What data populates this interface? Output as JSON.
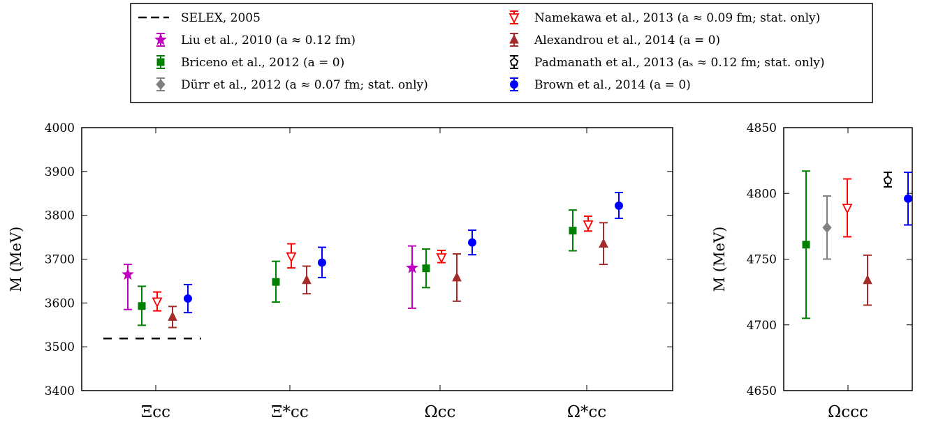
{
  "legend": [
    {
      "key": "selex",
      "label": "SELEX, 2005",
      "color": "#000000",
      "marker": "dash"
    },
    {
      "key": "liu",
      "label": "Liu et al., 2010 (a ≈ 0.12 fm)",
      "color": "#bf00bf",
      "marker": "star"
    },
    {
      "key": "briceno",
      "label": "Briceno et al., 2012 (a = 0)",
      "color": "#008000",
      "marker": "square"
    },
    {
      "key": "durr",
      "label": "Dürr et al., 2012 (a ≈ 0.07 fm; stat. only)",
      "color": "#808080",
      "marker": "diamond"
    },
    {
      "key": "namekawa",
      "label": "Namekawa et al., 2013 (a ≈ 0.09 fm; stat. only)",
      "color": "#ff0000",
      "marker": "triangle-down-open"
    },
    {
      "key": "alexandrou",
      "label": "Alexandrou et al., 2014 (a = 0)",
      "color": "#a52a2a",
      "marker": "triangle-up"
    },
    {
      "key": "padmanath",
      "label": "Padmanath et al., 2013 (aₛ ≈ 0.12 fm; stat. only)",
      "color": "#000000",
      "marker": "pentagon-open"
    },
    {
      "key": "brown",
      "label": "Brown et al., 2014 (a = 0)",
      "color": "#0000ff",
      "marker": "circle"
    }
  ],
  "chart_data": [
    {
      "type": "scatter",
      "ylabel": "M (MeV)",
      "ylim": [
        3400,
        4000
      ],
      "yticks": [
        3400,
        3500,
        3600,
        3700,
        3800,
        3900,
        4000
      ],
      "categories": [
        "Ξcc",
        "Ξ*cc",
        "Ωcc",
        "Ω*cc"
      ],
      "reference_line": {
        "series": "selex",
        "category": "Ξcc",
        "value": 3519
      },
      "series": [
        {
          "key": "liu",
          "points": [
            {
              "category": "Ξcc",
              "value": 3665,
              "low": 3585,
              "high": 3688
            },
            {
              "category": "Ωcc",
              "value": 3680,
              "low": 3588,
              "high": 3730
            }
          ]
        },
        {
          "key": "briceno",
          "points": [
            {
              "category": "Ξcc",
              "value": 3593,
              "low": 3549,
              "high": 3638
            },
            {
              "category": "Ξ*cc",
              "value": 3648,
              "low": 3602,
              "high": 3695
            },
            {
              "category": "Ωcc",
              "value": 3679,
              "low": 3635,
              "high": 3723
            },
            {
              "category": "Ω*cc",
              "value": 3765,
              "low": 3719,
              "high": 3812
            }
          ]
        },
        {
          "key": "namekawa",
          "points": [
            {
              "category": "Ξcc",
              "value": 3603,
              "low": 3582,
              "high": 3625
            },
            {
              "category": "Ξ*cc",
              "value": 3706,
              "low": 3680,
              "high": 3735
            },
            {
              "category": "Ωcc",
              "value": 3704,
              "low": 3692,
              "high": 3720
            },
            {
              "category": "Ω*cc",
              "value": 3779,
              "low": 3764,
              "high": 3798
            }
          ]
        },
        {
          "key": "alexandrou",
          "points": [
            {
              "category": "Ξcc",
              "value": 3568,
              "low": 3544,
              "high": 3592
            },
            {
              "category": "Ξ*cc",
              "value": 3652,
              "low": 3621,
              "high": 3684
            },
            {
              "category": "Ωcc",
              "value": 3658,
              "low": 3604,
              "high": 3712
            },
            {
              "category": "Ω*cc",
              "value": 3735,
              "low": 3688,
              "high": 3783
            }
          ]
        },
        {
          "key": "brown",
          "points": [
            {
              "category": "Ξcc",
              "value": 3610,
              "low": 3578,
              "high": 3642
            },
            {
              "category": "Ξ*cc",
              "value": 3692,
              "low": 3658,
              "high": 3727
            },
            {
              "category": "Ωcc",
              "value": 3738,
              "low": 3710,
              "high": 3766
            },
            {
              "category": "Ω*cc",
              "value": 3822,
              "low": 3793,
              "high": 3852
            }
          ]
        }
      ]
    },
    {
      "type": "scatter",
      "ylabel": "M (MeV)",
      "ylim": [
        4650,
        4850
      ],
      "yticks": [
        4650,
        4700,
        4750,
        4800,
        4850
      ],
      "categories": [
        "Ωccc"
      ],
      "series": [
        {
          "key": "briceno",
          "points": [
            {
              "category": "Ωccc",
              "value": 4761,
              "low": 4705,
              "high": 4817
            }
          ]
        },
        {
          "key": "durr",
          "points": [
            {
              "category": "Ωccc",
              "value": 4774,
              "low": 4750,
              "high": 4798
            }
          ]
        },
        {
          "key": "namekawa",
          "points": [
            {
              "category": "Ωccc",
              "value": 4789,
              "low": 4767,
              "high": 4811
            }
          ]
        },
        {
          "key": "alexandrou",
          "points": [
            {
              "category": "Ωccc",
              "value": 4734,
              "low": 4715,
              "high": 4753
            }
          ]
        },
        {
          "key": "padmanath",
          "points": [
            {
              "category": "Ωccc",
              "value": 4810,
              "low": 4805,
              "high": 4816
            }
          ]
        },
        {
          "key": "brown",
          "points": [
            {
              "category": "Ωccc",
              "value": 4796,
              "low": 4776,
              "high": 4816
            }
          ]
        }
      ]
    }
  ]
}
